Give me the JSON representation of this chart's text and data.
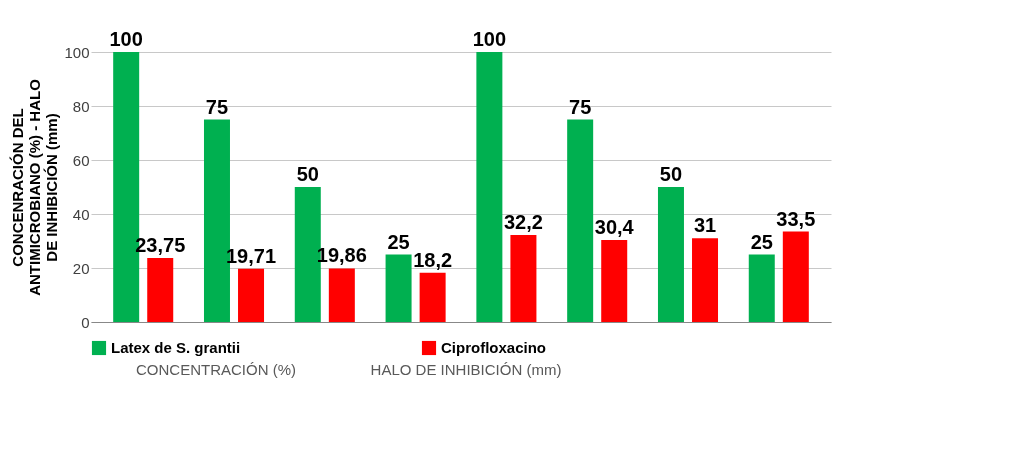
{
  "chart_data": {
    "type": "bar",
    "ylabel": "CONCENRACIÓN DEL ANTIMICROBIANO (%) - HALO DE INHIBICIÓN (mm)",
    "categories": [
      null,
      null,
      null,
      null,
      null,
      null,
      null,
      null
    ],
    "series": [
      {
        "name": "Latex de S. grantii",
        "color": "#00b050",
        "values": [
          100,
          75,
          50,
          25,
          100,
          75,
          50,
          25
        ],
        "value_labels": [
          "100",
          "75",
          "50",
          "25",
          "100",
          "75",
          "50",
          "25"
        ]
      },
      {
        "name": "Ciprofloxacino",
        "color": "#ff0000",
        "values": [
          23.75,
          19.71,
          19.86,
          18.2,
          32.2,
          30.4,
          31,
          33.5
        ],
        "value_labels": [
          "23,75",
          "19,71",
          "19,86",
          "18,2",
          "32,2",
          "30,4",
          "31",
          "33,5"
        ]
      }
    ],
    "ylim": [
      0,
      100
    ],
    "yticks": [
      0,
      20,
      40,
      60,
      80,
      100
    ],
    "grid": "y",
    "legend": "bottom",
    "tick_labels": "y",
    "annotations": [
      "CONCENTRACIÓN (%)",
      "HALO DE INHIBICIÓN (mm)"
    ]
  }
}
